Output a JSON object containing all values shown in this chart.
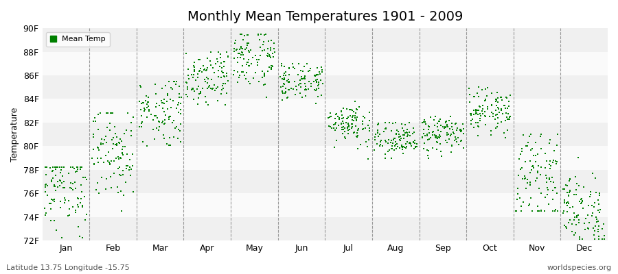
{
  "title": "Monthly Mean Temperatures 1901 - 2009",
  "ylabel": "Temperature",
  "xlabel": "",
  "legend_label": "Mean Temp",
  "subtitle": "Latitude 13.75 Longitude -15.75",
  "watermark": "worldspecies.org",
  "ylim": [
    72,
    90
  ],
  "yticks": [
    72,
    74,
    76,
    78,
    80,
    82,
    84,
    86,
    88,
    90
  ],
  "ytick_labels": [
    "72F",
    "74F",
    "76F",
    "78F",
    "80F",
    "82F",
    "84F",
    "86F",
    "88F",
    "90F"
  ],
  "months": [
    "Jan",
    "Feb",
    "Mar",
    "Apr",
    "May",
    "Jun",
    "Jul",
    "Aug",
    "Sep",
    "Oct",
    "Nov",
    "Dec"
  ],
  "marker_color": "#008000",
  "bg_color": "#FFFFFF",
  "band_colors": [
    "#F0F0F0",
    "#FAFAFA"
  ],
  "title_fontsize": 14,
  "axis_fontsize": 9,
  "seed": 12345,
  "monthly_means": [
    76.5,
    79.5,
    83.0,
    86.0,
    87.5,
    85.5,
    82.0,
    80.5,
    81.0,
    83.0,
    77.5,
    74.5
  ],
  "monthly_stds": [
    1.8,
    2.0,
    1.5,
    1.2,
    1.3,
    0.8,
    0.9,
    0.8,
    0.8,
    0.9,
    1.8,
    1.6
  ],
  "monthly_mins": [
    72.0,
    74.5,
    80.0,
    83.5,
    79.5,
    80.5,
    78.0,
    79.0,
    79.0,
    80.5,
    74.5,
    72.1
  ],
  "monthly_maxs": [
    78.2,
    82.8,
    85.5,
    88.0,
    89.5,
    87.0,
    84.0,
    82.0,
    82.5,
    86.5,
    81.0,
    80.5
  ],
  "n_points": 109
}
